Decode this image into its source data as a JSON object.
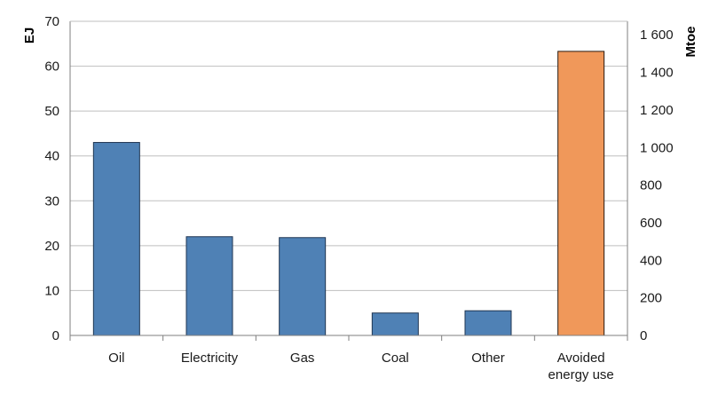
{
  "chart_data": {
    "type": "bar",
    "categories": [
      [
        "Oil"
      ],
      [
        "Electricity"
      ],
      [
        "Gas"
      ],
      [
        "Coal"
      ],
      [
        "Other"
      ],
      [
        "Avoided",
        "energy use"
      ]
    ],
    "values": [
      43,
      22,
      21.8,
      5,
      5.5,
      63.3
    ],
    "ylabel": "EJ",
    "ylim": [
      0,
      70
    ],
    "yticks": [
      0,
      10,
      20,
      30,
      40,
      50,
      60,
      70
    ],
    "y2label": "Mtoe",
    "y2lim": [
      0,
      1672
    ],
    "y2ticks": [
      0,
      200,
      400,
      600,
      800,
      1000,
      1200,
      1400,
      1600
    ],
    "y2tick_labels": [
      "0",
      "200",
      "400",
      "600",
      "800",
      "1 000",
      "1 200",
      "1 400",
      "1 600"
    ],
    "grid": true,
    "colors": {
      "bar": "#4f81b5",
      "bar_edge": "#1f3552",
      "highlight": "#f0985a",
      "highlight_edge": "#2a1a10",
      "grid": "#bfbfbf",
      "axis": "#7f7f7f"
    },
    "highlight_index": 5
  }
}
